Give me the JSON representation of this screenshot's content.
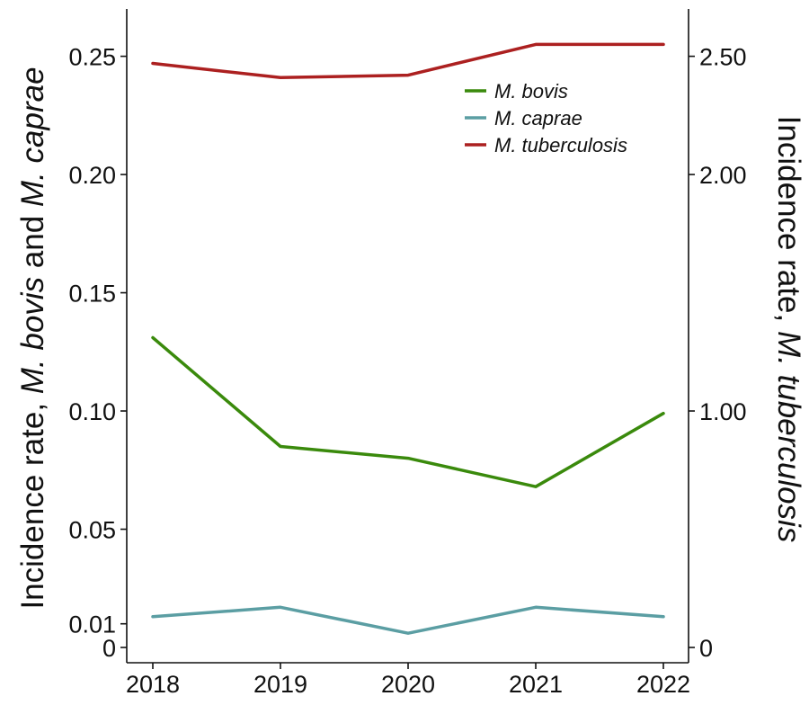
{
  "chart_data": {
    "type": "line",
    "x": [
      2018,
      2019,
      2020,
      2021,
      2022
    ],
    "x_tick_labels": [
      "2018",
      "2019",
      "2020",
      "2021",
      "2022"
    ],
    "left_axis": {
      "title_parts": [
        {
          "text": "Incidence rate, ",
          "italic": false
        },
        {
          "text": "M. bovis",
          "italic": true
        },
        {
          "text": " and ",
          "italic": false
        },
        {
          "text": "M. caprae",
          "italic": true
        }
      ],
      "ylim": [
        0,
        0.27
      ],
      "ticks": [
        0,
        0.01,
        0.05,
        0.1,
        0.15,
        0.2,
        0.25
      ],
      "tick_labels": [
        "0",
        "0.01",
        "0.05",
        "0.10",
        "0.15",
        "0.20",
        "0.25"
      ]
    },
    "right_axis": {
      "title_parts": [
        {
          "text": "Incidence rate, ",
          "italic": false
        },
        {
          "text": "M. tuberculosis",
          "italic": true
        }
      ],
      "ylim": [
        0,
        2.7
      ],
      "ticks": [
        0,
        1.0,
        2.0,
        2.5
      ],
      "tick_labels": [
        "0",
        "1.00",
        "2.00",
        "2.50"
      ]
    },
    "series": [
      {
        "name": "M. bovis",
        "axis": "left",
        "color": "#3a8a0c",
        "values": [
          0.131,
          0.085,
          0.08,
          0.068,
          0.099
        ]
      },
      {
        "name": "M. caprae",
        "axis": "left",
        "color": "#5b9ea3",
        "values": [
          0.013,
          0.017,
          0.006,
          0.017,
          0.013
        ]
      },
      {
        "name": "M. tuberculosis",
        "axis": "right",
        "color": "#ac2020",
        "values": [
          2.47,
          2.41,
          2.42,
          2.55,
          2.55
        ]
      }
    ],
    "legend_position": "top-right",
    "grid": false
  }
}
